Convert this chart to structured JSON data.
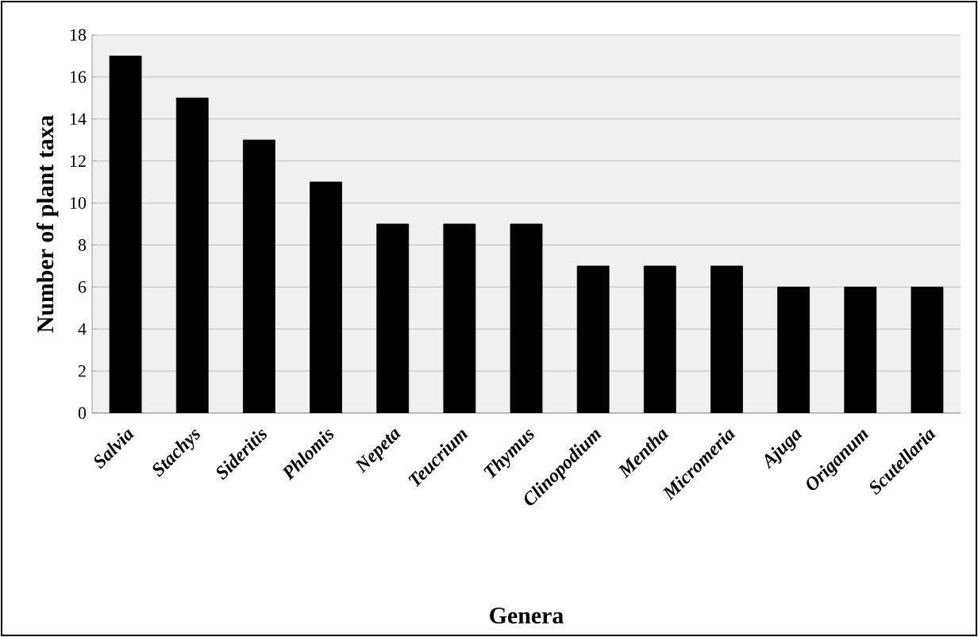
{
  "chart_data": {
    "type": "bar",
    "xlabel": "Genera",
    "ylabel": "Number of plant taxa",
    "categories": [
      "Salvia",
      "Stachys",
      "Sideritis",
      "Phlomis",
      "Nepeta",
      "Teucrium",
      "Thymus",
      "Clinopodium",
      "Mentha",
      "Micromeria",
      "Ajuga",
      "Origanum",
      "Scutellaria"
    ],
    "values": [
      17,
      15,
      13,
      11,
      9,
      9,
      9,
      7,
      7,
      7,
      6,
      6,
      6
    ],
    "color": "#000000",
    "ylim": [
      0,
      18
    ],
    "yticks": [
      0,
      2,
      4,
      6,
      8,
      10,
      12,
      14,
      16,
      18
    ],
    "grid": "y"
  }
}
